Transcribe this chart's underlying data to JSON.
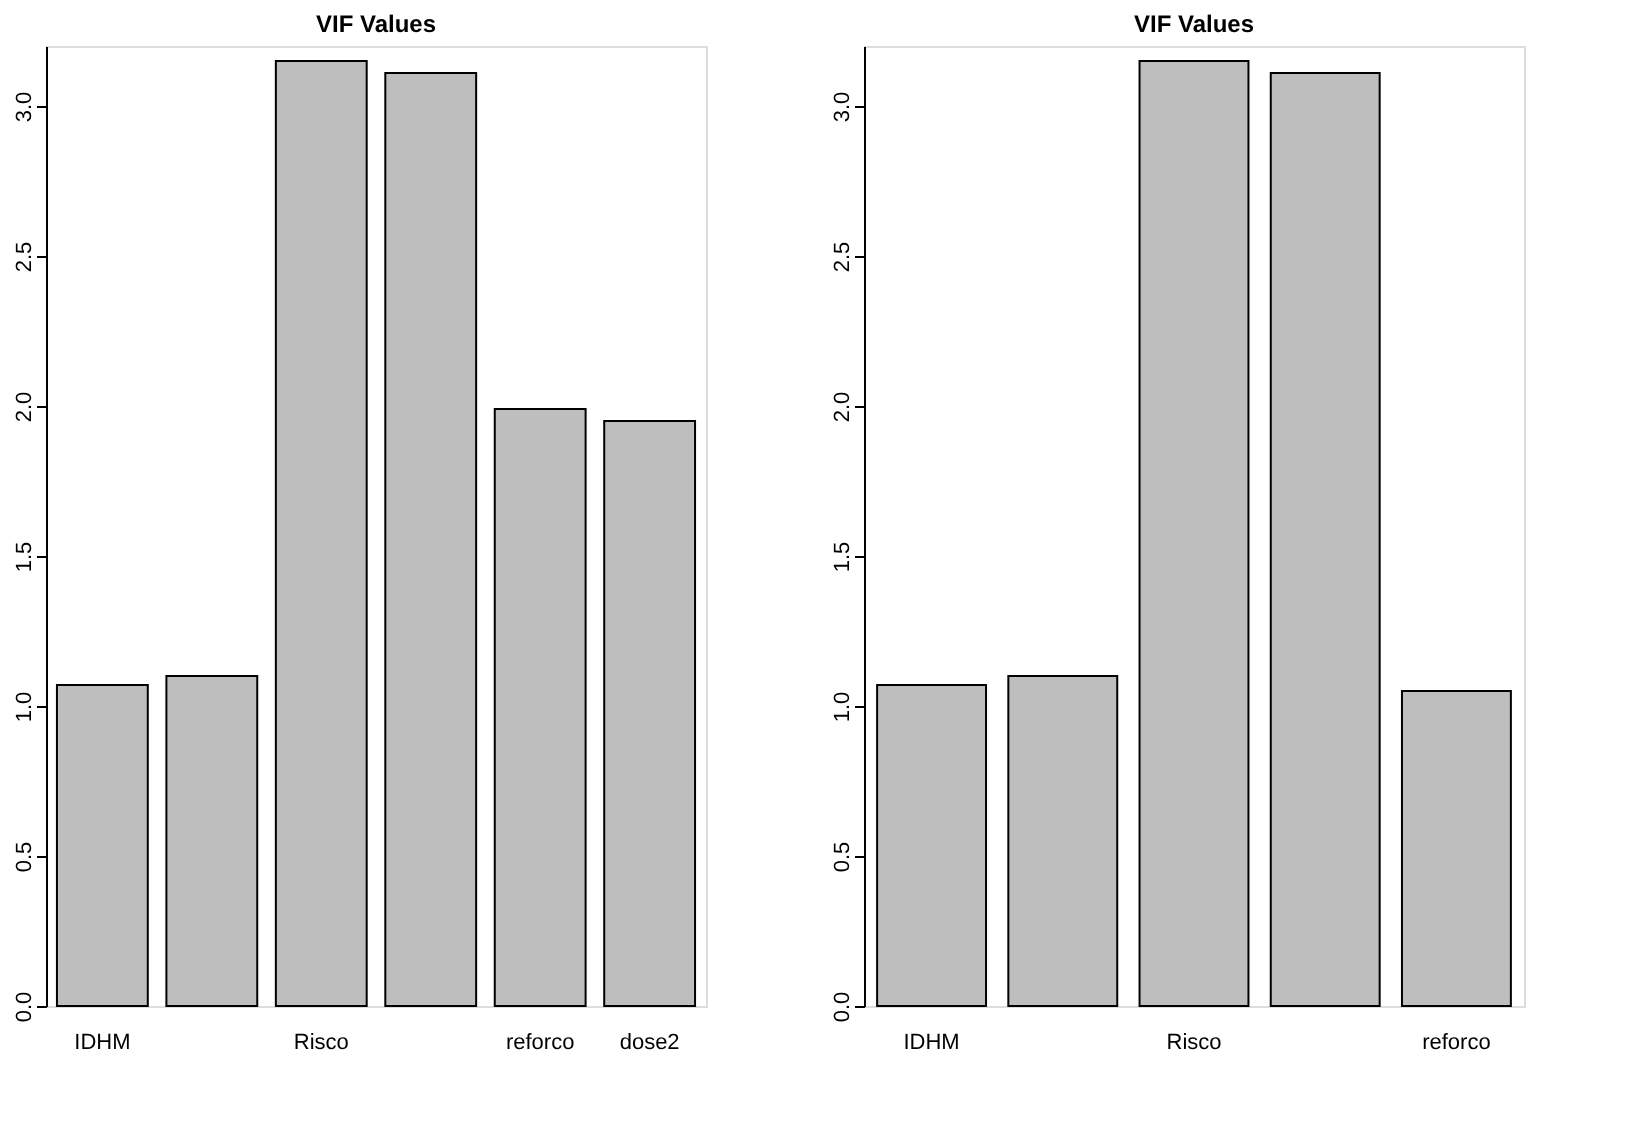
{
  "chart_data": [
    {
      "type": "bar",
      "title": "VIF Values",
      "categories": [
        "IDHM",
        null,
        "Risco",
        null,
        "reforco",
        "dose2"
      ],
      "values": [
        1.07,
        1.1,
        3.15,
        3.11,
        1.99,
        1.95
      ],
      "color": "#bebebe",
      "ylim": [
        0,
        3.2
      ],
      "yticks": [
        {
          "value": 0,
          "label": "0.0"
        },
        0.5,
        {
          "value": 1,
          "label": "1.0"
        },
        1.5,
        {
          "value": 2,
          "label": "2.0"
        },
        2.5,
        {
          "value": 3,
          "label": "3.0"
        }
      ],
      "grid": false
    },
    {
      "type": "bar",
      "title": "VIF Values",
      "categories": [
        "IDHM",
        null,
        "Risco",
        null,
        "reforco"
      ],
      "values": [
        1.07,
        1.1,
        3.15,
        3.11,
        1.05
      ],
      "color": "#bebebe",
      "ylim": [
        0,
        3.2
      ],
      "yticks": [
        {
          "value": 0,
          "label": "0.0"
        },
        0.5,
        {
          "value": 1,
          "label": "1.0"
        },
        1.5,
        {
          "value": 2,
          "label": "2.0"
        },
        2.5,
        {
          "value": 3,
          "label": "3.0"
        }
      ],
      "grid": false
    }
  ]
}
